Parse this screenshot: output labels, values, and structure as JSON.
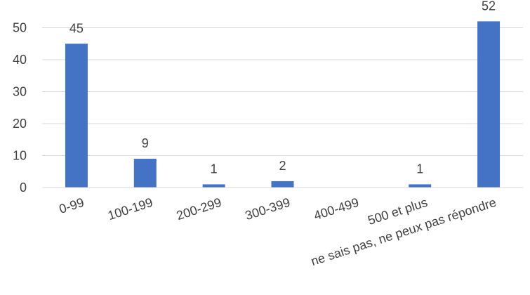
{
  "chart_data": {
    "type": "bar",
    "categories": [
      "0-99",
      "100-199",
      "200-299",
      "300-399",
      "400-499",
      "500 et plus",
      "ne sais pas, ne peux pas répondre"
    ],
    "values": [
      45,
      9,
      1,
      2,
      0,
      1,
      52
    ],
    "data_labels": [
      "45",
      "9",
      "1",
      "2",
      "",
      "1",
      "52"
    ],
    "title": "",
    "xlabel": "",
    "ylabel": "",
    "ylim": [
      0,
      50
    ],
    "yticks": [
      0,
      10,
      20,
      30,
      40,
      50
    ],
    "grid": true,
    "legend": "none",
    "bar_color": "#4472c4"
  }
}
